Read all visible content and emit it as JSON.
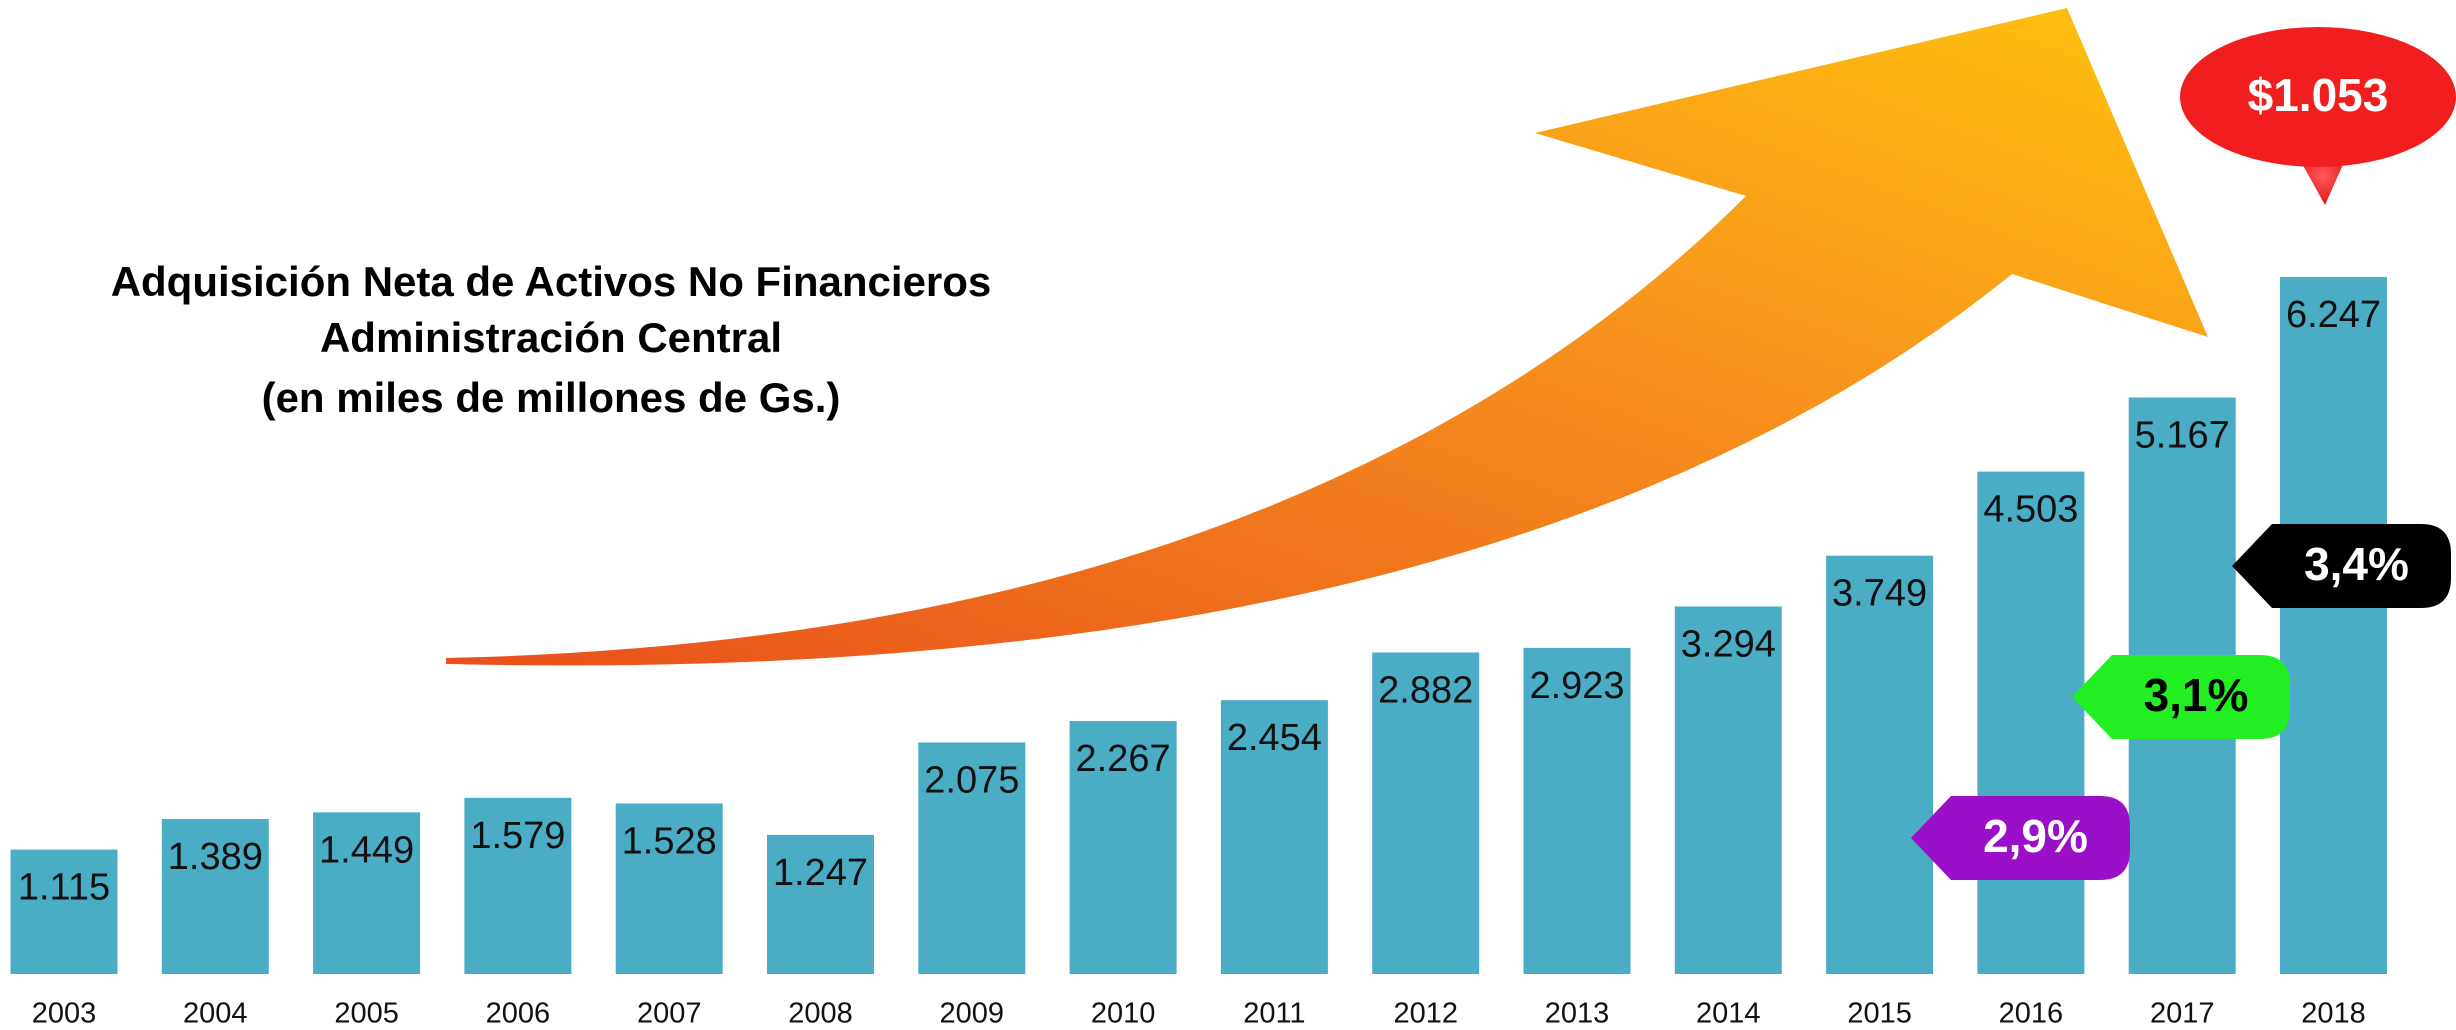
{
  "chart_data": {
    "type": "bar",
    "title": [
      "Adquisición Neta de Activos No Financieros",
      "Administración Central",
      "(en miles de millones de Gs.)"
    ],
    "categories": [
      "2003",
      "2004",
      "2005",
      "2006",
      "2007",
      "2008",
      "2009",
      "2010",
      "2011",
      "2012",
      "2013",
      "2014",
      "2015",
      "2016",
      "2017",
      "2018"
    ],
    "values": [
      1115,
      1389,
      1449,
      1579,
      1528,
      1247,
      2075,
      2267,
      2454,
      2882,
      2923,
      3294,
      3749,
      4503,
      5167,
      6247
    ],
    "value_labels": [
      "1.115",
      "1.389",
      "1.449",
      "1.579",
      "1.528",
      "1.247",
      "2.075",
      "2.267",
      "2.454",
      "2.882",
      "2.923",
      "3.294",
      "3.749",
      "4.503",
      "5.167",
      "6.247"
    ],
    "color": "#4bacc6",
    "annotations": [
      {
        "text": "$1.053",
        "color": "#f01e1e"
      },
      {
        "text": "3,4%",
        "color": "#000000"
      },
      {
        "text": "3,1%",
        "color": "#22ee22"
      },
      {
        "text": "2,9%",
        "color": "#9a10c8"
      }
    ]
  }
}
